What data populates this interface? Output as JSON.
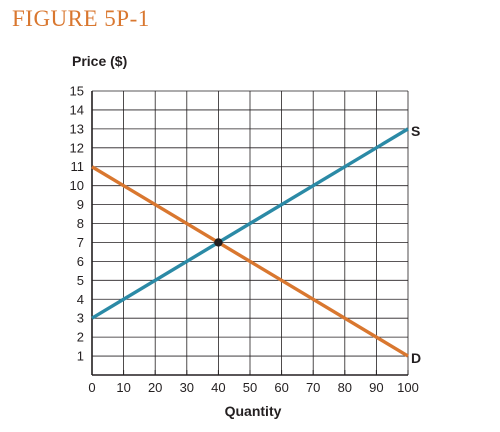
{
  "figure": {
    "title": "FIGURE 5P-1"
  },
  "chart_data": {
    "type": "line",
    "xlabel": "Quantity",
    "ylabel": "Price ($)",
    "xlim": [
      0,
      100
    ],
    "ylim": [
      0,
      15
    ],
    "x_ticks": [
      "0",
      "10",
      "20",
      "30",
      "40",
      "50",
      "60",
      "70",
      "80",
      "90",
      "100"
    ],
    "y_ticks": [
      "1",
      "2",
      "3",
      "4",
      "5",
      "6",
      "7",
      "8",
      "9",
      "10",
      "11",
      "12",
      "13",
      "14",
      "15"
    ],
    "grid": true,
    "series": [
      {
        "name": "S",
        "color": "#2b8aa6",
        "x": [
          0,
          100
        ],
        "y": [
          3,
          13
        ]
      },
      {
        "name": "D",
        "color": "#d9772f",
        "x": [
          0,
          100
        ],
        "y": [
          11,
          1
        ]
      }
    ],
    "equilibrium": {
      "x": 40,
      "y": 7
    }
  }
}
